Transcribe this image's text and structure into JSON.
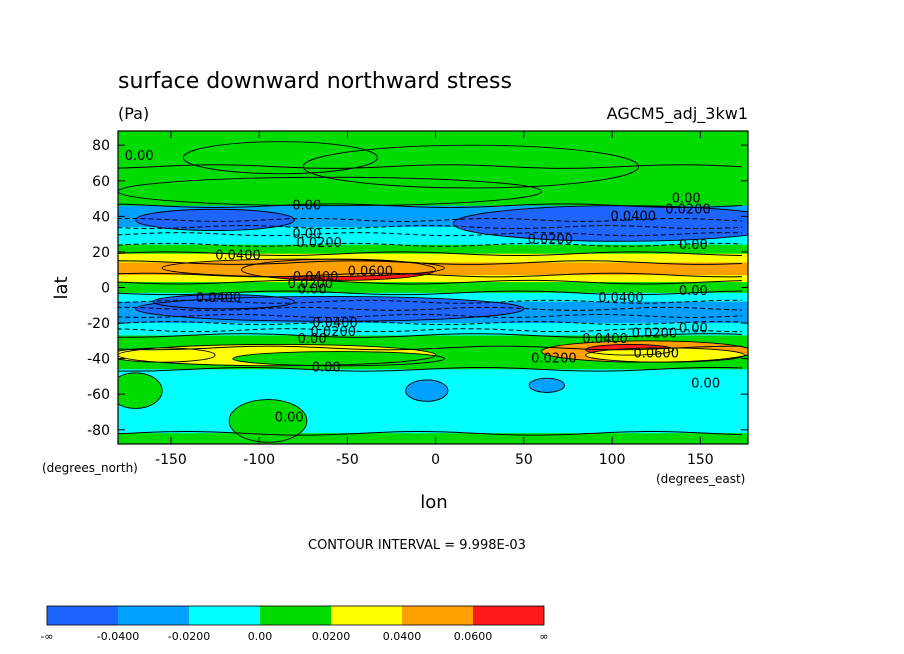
{
  "chart_data": {
    "type": "heatmap",
    "title": "surface downward northward stress",
    "units": "(Pa)",
    "run_label": "AGCM5_adj_3kw1",
    "xlabel": "lon",
    "ylabel": "lat",
    "x_unit_label": "(degrees_east)",
    "y_unit_label": "(degrees_north)",
    "xlim": [
      -180,
      177
    ],
    "ylim": [
      -88,
      88
    ],
    "x_ticks": [
      {
        "value": -150,
        "label": "-150"
      },
      {
        "value": -100,
        "label": "-100"
      },
      {
        "value": -50,
        "label": "-50"
      },
      {
        "value": 0,
        "label": "0"
      },
      {
        "value": 50,
        "label": "50"
      },
      {
        "value": 100,
        "label": "100"
      },
      {
        "value": 150,
        "label": "150"
      }
    ],
    "y_ticks": [
      {
        "value": 80,
        "label": "80"
      },
      {
        "value": 60,
        "label": "60"
      },
      {
        "value": 40,
        "label": "40"
      },
      {
        "value": 20,
        "label": "20"
      },
      {
        "value": 0,
        "label": "0"
      },
      {
        "value": -20,
        "label": "-20"
      },
      {
        "value": -40,
        "label": "-40"
      },
      {
        "value": -60,
        "label": "-60"
      },
      {
        "value": -80,
        "label": "-80"
      }
    ],
    "contour_interval_text": "CONTOUR INTERVAL = 9.998E-03",
    "colorbar": {
      "colors": [
        "#1e64ff",
        "#00a0ff",
        "#00ffff",
        "#00dc00",
        "#ffff00",
        "#ffa000",
        "#ff1a1a"
      ],
      "labels": [
        "-∞",
        "-0.0400",
        "-0.0200",
        "0.00",
        "0.0200",
        "0.0400",
        "0.0600",
        "∞"
      ]
    },
    "background_band_color": "#00dc00",
    "zonal_bands": [
      {
        "lat": [
          68,
          88
        ],
        "color": "#00dc00"
      },
      {
        "lat": [
          46,
          68
        ],
        "color": "#00dc00"
      },
      {
        "lat": [
          34,
          46
        ],
        "color": "#00a0ff"
      },
      {
        "lat": [
          24,
          34
        ],
        "color": "#00ffff"
      },
      {
        "lat": [
          19,
          24
        ],
        "color": "#00dc00"
      },
      {
        "lat": [
          14,
          19
        ],
        "color": "#ffff00"
      },
      {
        "lat": [
          7,
          14
        ],
        "color": "#ffa000"
      },
      {
        "lat": [
          3,
          7
        ],
        "color": "#ffff00"
      },
      {
        "lat": [
          -3,
          3
        ],
        "color": "#00dc00"
      },
      {
        "lat": [
          -8,
          -3
        ],
        "color": "#00ffff"
      },
      {
        "lat": [
          -20,
          -8
        ],
        "color": "#00a0ff"
      },
      {
        "lat": [
          -27,
          -20
        ],
        "color": "#00ffff"
      },
      {
        "lat": [
          -34,
          -27
        ],
        "color": "#00dc00"
      },
      {
        "lat": [
          -46,
          -34
        ],
        "color": "#00dc00"
      },
      {
        "lat": [
          -82,
          -46
        ],
        "color": "#00ffff"
      },
      {
        "lat": [
          -88,
          -82
        ],
        "color": "#00dc00"
      }
    ],
    "anomalies": [
      {
        "lon": -88,
        "lat": 73,
        "rx": 55,
        "ry": 9,
        "color": "#00dc00"
      },
      {
        "lon": 20,
        "lat": 68,
        "rx": 95,
        "ry": 12,
        "color": "#00dc00"
      },
      {
        "lon": -60,
        "lat": 54,
        "rx": 120,
        "ry": 8,
        "color": "#00dc00"
      },
      {
        "lon": 105,
        "lat": 36,
        "rx": 95,
        "ry": 10,
        "color": "#1e64ff"
      },
      {
        "lon": -125,
        "lat": 38,
        "rx": 45,
        "ry": 6,
        "color": "#1e64ff"
      },
      {
        "lon": -55,
        "lat": 10,
        "rx": 55,
        "ry": 6,
        "color": "#ff1a1a"
      },
      {
        "lon": -75,
        "lat": 11,
        "rx": 80,
        "ry": 5,
        "color": "#ffa000"
      },
      {
        "lon": -60,
        "lat": -12,
        "rx": 110,
        "ry": 7,
        "color": "#1e64ff"
      },
      {
        "lon": -120,
        "lat": -8,
        "rx": 40,
        "ry": 4,
        "color": "#1e64ff"
      },
      {
        "lon": 120,
        "lat": -36,
        "rx": 60,
        "ry": 6,
        "color": "#ffa000"
      },
      {
        "lon": 110,
        "lat": -35,
        "rx": 25,
        "ry": 3,
        "color": "#ff1a1a"
      },
      {
        "lon": -90,
        "lat": -38,
        "rx": 90,
        "ry": 6,
        "color": "#ffff00"
      },
      {
        "lon": 130,
        "lat": -38,
        "rx": 45,
        "ry": 4,
        "color": "#ffff00"
      },
      {
        "lon": -155,
        "lat": -38,
        "rx": 30,
        "ry": 4,
        "color": "#ffff00"
      },
      {
        "lon": -55,
        "lat": -40,
        "rx": 60,
        "ry": 4,
        "color": "#00dc00"
      },
      {
        "lon": -5,
        "lat": -58,
        "rx": 12,
        "ry": 6,
        "color": "#00a0ff"
      },
      {
        "lon": 63,
        "lat": -55,
        "rx": 10,
        "ry": 4,
        "color": "#00a0ff"
      },
      {
        "lon": -95,
        "lat": -75,
        "rx": 22,
        "ry": 12,
        "color": "#00dc00"
      },
      {
        "lon": -170,
        "lat": -58,
        "rx": 15,
        "ry": 10,
        "color": "#00dc00"
      }
    ],
    "contour_labels": [
      {
        "lon": -168,
        "lat": 74,
        "text": "0.00"
      },
      {
        "lon": -73,
        "lat": 46,
        "text": "0.00"
      },
      {
        "lon": 112,
        "lat": 40,
        "text": "0.0400"
      },
      {
        "lon": 143,
        "lat": 44,
        "text": "0.0200"
      },
      {
        "lon": 142,
        "lat": 50,
        "text": "0.00"
      },
      {
        "lon": -73,
        "lat": 30,
        "text": "0.00"
      },
      {
        "lon": -66,
        "lat": 25,
        "text": "0.0200"
      },
      {
        "lon": 65,
        "lat": 27,
        "text": "0.0200"
      },
      {
        "lon": 146,
        "lat": 24,
        "text": "0.00"
      },
      {
        "lon": -112,
        "lat": 18,
        "text": "0.0400"
      },
      {
        "lon": -37,
        "lat": 9,
        "text": "0.0600"
      },
      {
        "lon": -68,
        "lat": 6,
        "text": "0.0400"
      },
      {
        "lon": -71,
        "lat": 2,
        "text": "0.0200"
      },
      {
        "lon": -70,
        "lat": -1,
        "text": "0.00"
      },
      {
        "lon": -123,
        "lat": -6,
        "text": "0.0400"
      },
      {
        "lon": 105,
        "lat": -6,
        "text": "0.0400"
      },
      {
        "lon": 146,
        "lat": -2,
        "text": "0.00"
      },
      {
        "lon": -57,
        "lat": -20,
        "text": "0.0400"
      },
      {
        "lon": -58,
        "lat": -25,
        "text": "0.0200"
      },
      {
        "lon": -70,
        "lat": -29,
        "text": "0.00"
      },
      {
        "lon": 96,
        "lat": -29,
        "text": "0.0400"
      },
      {
        "lon": 124,
        "lat": -26,
        "text": "0.0200"
      },
      {
        "lon": 146,
        "lat": -23,
        "text": "0.00"
      },
      {
        "lon": 125,
        "lat": -37,
        "text": "0.0600"
      },
      {
        "lon": 67,
        "lat": -40,
        "text": "0.0200"
      },
      {
        "lon": -62,
        "lat": -45,
        "text": "0.00"
      },
      {
        "lon": 153,
        "lat": -54,
        "text": "0.00"
      },
      {
        "lon": -83,
        "lat": -73,
        "text": "0.00"
      }
    ]
  }
}
